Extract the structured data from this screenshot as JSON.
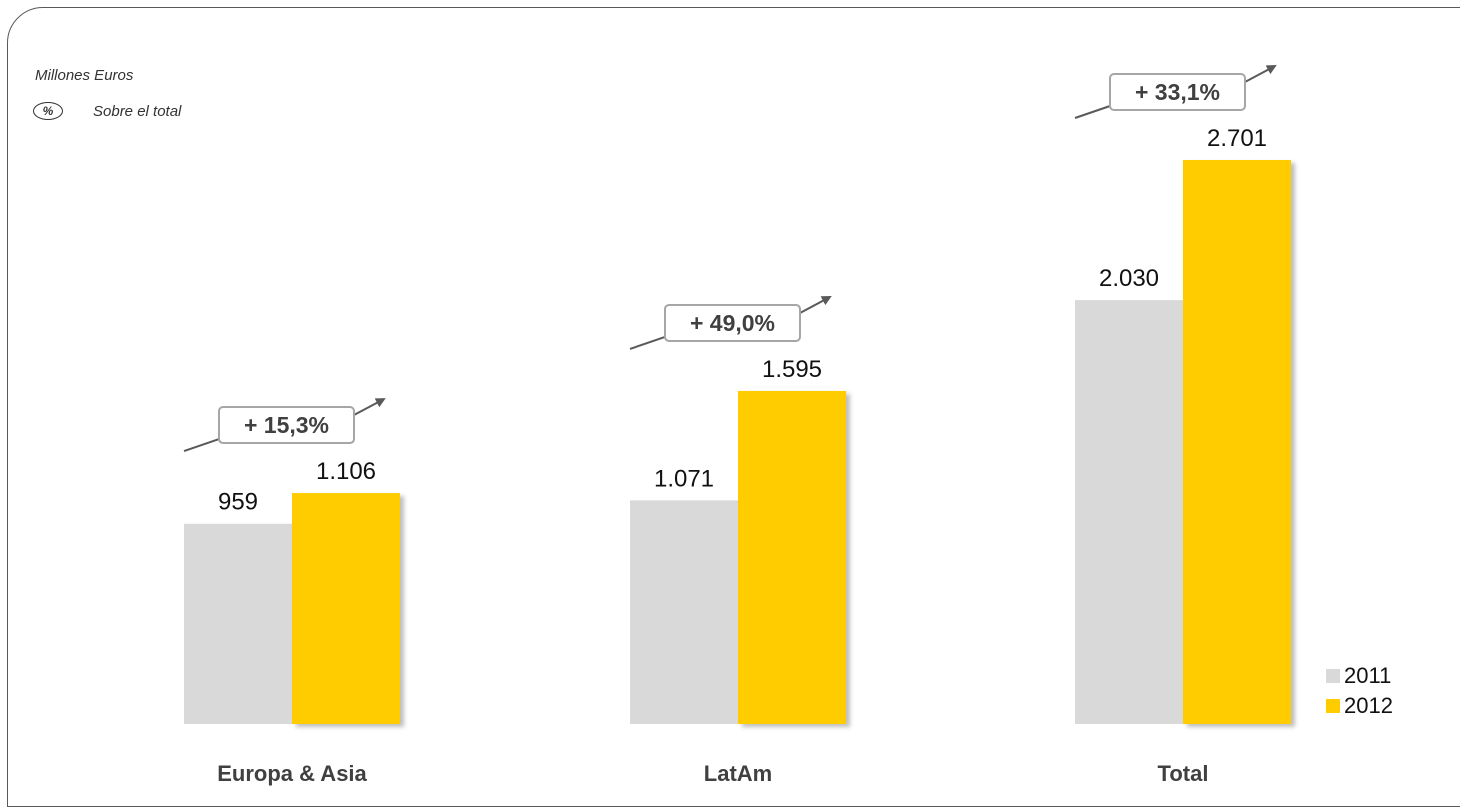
{
  "header": {
    "unit_label": "Millones Euros",
    "pct_badge": "%",
    "pct_note": "Sobre el total"
  },
  "colors": {
    "series_2011": "#D9D9D9",
    "series_2012": "#FFCC00",
    "frame": "#595959",
    "growth_box": "#A6A6A6"
  },
  "chart_data": {
    "type": "bar",
    "categories": [
      "Europa & Asia",
      "LatAm",
      "Total"
    ],
    "series": [
      {
        "name": "2011",
        "values": [
          959,
          1071,
          2030
        ],
        "labels": [
          "959",
          "1.071",
          "2.030"
        ]
      },
      {
        "name": "2012",
        "values": [
          1106,
          1595,
          2701
        ],
        "labels": [
          "1.106",
          "1.595",
          "2.701"
        ]
      }
    ],
    "growth": [
      "+ 15,3%",
      "+ 49,0%",
      "+ 33,1%"
    ],
    "ylim": [
      0,
      2701
    ],
    "legend": "bottom-right",
    "grid": false
  }
}
